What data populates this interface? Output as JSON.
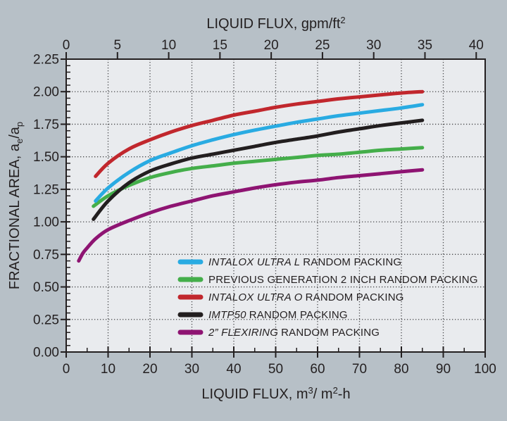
{
  "colors": {
    "outer_background": "#b7c0c7",
    "plot_background": "#e9ebee",
    "axis": "#231f20",
    "grid": "#48484a",
    "text": "#231f20"
  },
  "chart_data": {
    "type": "line",
    "x_axis_top": {
      "full_label": "LIQUID FLUX, gpm/ft²",
      "label_main": "LIQUID FLUX, gpm/ft",
      "label_sup": "2",
      "ticks": [
        0,
        5,
        10,
        15,
        20,
        25,
        30,
        35,
        40
      ],
      "m3_per_unit": 2.4466
    },
    "x_axis_bottom": {
      "full_label": "LIQUID FLUX, m³/ m²-h",
      "label_main": "LIQUID FLUX, m",
      "label_sup1": "3",
      "label_mid": "/ m",
      "label_sup2": "2",
      "label_end": "-h",
      "range": [
        0,
        100
      ],
      "ticks": [
        0,
        10,
        20,
        30,
        40,
        50,
        60,
        70,
        80,
        90,
        100
      ],
      "minor_tick_step": 5
    },
    "y_axis": {
      "full_label": "FRACTIONAL AREA, aₑ/aₚ",
      "label_main": "FRACTIONAL AREA, a",
      "label_sub1": "e",
      "label_mid": "/a",
      "label_sub2": "p",
      "range": [
        0,
        2.25
      ],
      "ticks": [
        "0.00",
        "0.25",
        "0.50",
        "0.75",
        "1.00",
        "1.25",
        "1.50",
        "1.75",
        "2.00",
        "2.25"
      ],
      "minor_tick_step": 0.05
    },
    "grid": {
      "x_interval": 10,
      "y_interval": 0.25,
      "style": "dotted"
    },
    "legend_position": "inside-lower-center",
    "series": [
      {
        "label_italic": "INTALOX ULTRA L",
        "label_rest": "RANDOM PACKING",
        "color": "#29abe2",
        "points": [
          [
            7,
            1.16
          ],
          [
            10,
            1.26
          ],
          [
            15,
            1.38
          ],
          [
            20,
            1.47
          ],
          [
            25,
            1.53
          ],
          [
            30,
            1.585
          ],
          [
            35,
            1.63
          ],
          [
            40,
            1.67
          ],
          [
            45,
            1.705
          ],
          [
            50,
            1.735
          ],
          [
            55,
            1.765
          ],
          [
            60,
            1.79
          ],
          [
            65,
            1.815
          ],
          [
            70,
            1.835
          ],
          [
            75,
            1.855
          ],
          [
            80,
            1.875
          ],
          [
            85,
            1.9
          ]
        ]
      },
      {
        "label_italic": "",
        "label_rest": "PREVIOUS GENERATION 2 INCH RANDOM PACKING",
        "color": "#44ae4a",
        "points": [
          [
            6.5,
            1.12
          ],
          [
            10,
            1.2
          ],
          [
            15,
            1.28
          ],
          [
            20,
            1.34
          ],
          [
            25,
            1.38
          ],
          [
            30,
            1.41
          ],
          [
            35,
            1.43
          ],
          [
            40,
            1.45
          ],
          [
            45,
            1.465
          ],
          [
            50,
            1.48
          ],
          [
            55,
            1.495
          ],
          [
            60,
            1.51
          ],
          [
            65,
            1.52
          ],
          [
            70,
            1.535
          ],
          [
            75,
            1.55
          ],
          [
            80,
            1.56
          ],
          [
            85,
            1.57
          ]
        ]
      },
      {
        "label_italic": "INTALOX ULTRA O",
        "label_rest": "RANDOM PACKING",
        "color": "#c1272d",
        "points": [
          [
            7,
            1.35
          ],
          [
            10,
            1.45
          ],
          [
            15,
            1.56
          ],
          [
            20,
            1.63
          ],
          [
            25,
            1.69
          ],
          [
            30,
            1.74
          ],
          [
            35,
            1.78
          ],
          [
            40,
            1.82
          ],
          [
            45,
            1.85
          ],
          [
            50,
            1.88
          ],
          [
            55,
            1.905
          ],
          [
            60,
            1.925
          ],
          [
            65,
            1.945
          ],
          [
            70,
            1.96
          ],
          [
            75,
            1.975
          ],
          [
            80,
            1.99
          ],
          [
            85,
            2.0
          ]
        ]
      },
      {
        "label_italic": "IMTP50",
        "label_rest": "RANDOM PACKING",
        "color": "#221e1f",
        "points": [
          [
            6.5,
            1.02
          ],
          [
            10,
            1.16
          ],
          [
            15,
            1.3
          ],
          [
            20,
            1.39
          ],
          [
            25,
            1.445
          ],
          [
            30,
            1.49
          ],
          [
            35,
            1.52
          ],
          [
            40,
            1.55
          ],
          [
            45,
            1.58
          ],
          [
            50,
            1.61
          ],
          [
            55,
            1.635
          ],
          [
            60,
            1.66
          ],
          [
            65,
            1.69
          ],
          [
            70,
            1.715
          ],
          [
            75,
            1.74
          ],
          [
            80,
            1.76
          ],
          [
            85,
            1.78
          ]
        ]
      },
      {
        "label_italic": "2” FLEXIRING",
        "label_rest": "RANDOM PACKING",
        "color": "#8e1472",
        "points": [
          [
            3,
            0.7
          ],
          [
            4,
            0.76
          ],
          [
            5,
            0.8
          ],
          [
            7,
            0.87
          ],
          [
            10,
            0.94
          ],
          [
            15,
            1.01
          ],
          [
            20,
            1.07
          ],
          [
            25,
            1.12
          ],
          [
            30,
            1.16
          ],
          [
            35,
            1.2
          ],
          [
            40,
            1.23
          ],
          [
            45,
            1.26
          ],
          [
            50,
            1.285
          ],
          [
            55,
            1.305
          ],
          [
            60,
            1.32
          ],
          [
            65,
            1.34
          ],
          [
            70,
            1.355
          ],
          [
            75,
            1.37
          ],
          [
            80,
            1.385
          ],
          [
            85,
            1.4
          ]
        ]
      }
    ]
  }
}
